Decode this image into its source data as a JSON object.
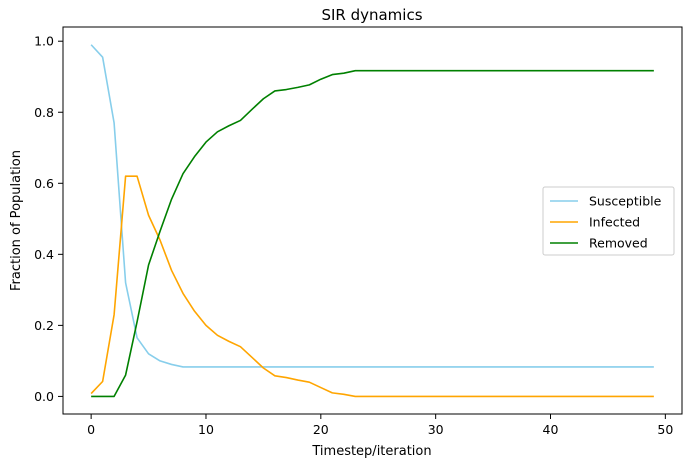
{
  "chart_data": {
    "type": "line",
    "title": "SIR dynamics",
    "xlabel": "Timestep/iteration",
    "ylabel": "Fraction of Population",
    "xlim": [
      -2.45,
      51.45
    ],
    "ylim": [
      -0.0495,
      1.04
    ],
    "xticks": [
      0,
      10,
      20,
      30,
      40,
      50
    ],
    "yticks": [
      0.0,
      0.2,
      0.4,
      0.6,
      0.8,
      1.0
    ],
    "xtick_labels": [
      "0",
      "10",
      "20",
      "30",
      "40",
      "50"
    ],
    "ytick_labels": [
      "0.0",
      "0.2",
      "0.4",
      "0.6",
      "0.8",
      "1.0"
    ],
    "grid": false,
    "legend_position": "center-right",
    "x": [
      0,
      1,
      2,
      3,
      4,
      5,
      6,
      7,
      8,
      9,
      10,
      11,
      12,
      13,
      14,
      15,
      16,
      17,
      18,
      19,
      20,
      21,
      22,
      23,
      24,
      25,
      26,
      27,
      28,
      29,
      30,
      31,
      32,
      33,
      34,
      35,
      36,
      37,
      38,
      39,
      40,
      41,
      42,
      43,
      44,
      45,
      46,
      47,
      48,
      49
    ],
    "series": [
      {
        "name": "Susceptible",
        "color": "#87ceeb",
        "values": [
          0.99,
          0.955,
          0.77,
          0.32,
          0.165,
          0.12,
          0.1,
          0.09,
          0.083,
          0.083,
          0.083,
          0.083,
          0.083,
          0.083,
          0.083,
          0.083,
          0.083,
          0.083,
          0.083,
          0.083,
          0.083,
          0.083,
          0.083,
          0.083,
          0.083,
          0.083,
          0.083,
          0.083,
          0.083,
          0.083,
          0.083,
          0.083,
          0.083,
          0.083,
          0.083,
          0.083,
          0.083,
          0.083,
          0.083,
          0.083,
          0.083,
          0.083,
          0.083,
          0.083,
          0.083,
          0.083,
          0.083,
          0.083,
          0.083,
          0.083
        ]
      },
      {
        "name": "Infected",
        "color": "#ffa500",
        "values": [
          0.008,
          0.042,
          0.23,
          0.62,
          0.62,
          0.51,
          0.44,
          0.355,
          0.29,
          0.24,
          0.2,
          0.172,
          0.155,
          0.14,
          0.11,
          0.08,
          0.058,
          0.053,
          0.046,
          0.04,
          0.025,
          0.01,
          0.006,
          0,
          0,
          0,
          0,
          0,
          0,
          0,
          0,
          0,
          0,
          0,
          0,
          0,
          0,
          0,
          0,
          0,
          0,
          0,
          0,
          0,
          0,
          0,
          0,
          0,
          0,
          0
        ]
      },
      {
        "name": "Removed",
        "color": "#008000",
        "values": [
          0,
          0,
          0,
          0.06,
          0.21,
          0.37,
          0.465,
          0.555,
          0.627,
          0.675,
          0.716,
          0.745,
          0.762,
          0.777,
          0.808,
          0.838,
          0.86,
          0.864,
          0.87,
          0.877,
          0.893,
          0.906,
          0.91,
          0.917,
          0.917,
          0.917,
          0.917,
          0.917,
          0.917,
          0.917,
          0.917,
          0.917,
          0.917,
          0.917,
          0.917,
          0.917,
          0.917,
          0.917,
          0.917,
          0.917,
          0.917,
          0.917,
          0.917,
          0.917,
          0.917,
          0.917,
          0.917,
          0.917,
          0.917,
          0.917
        ]
      }
    ]
  }
}
